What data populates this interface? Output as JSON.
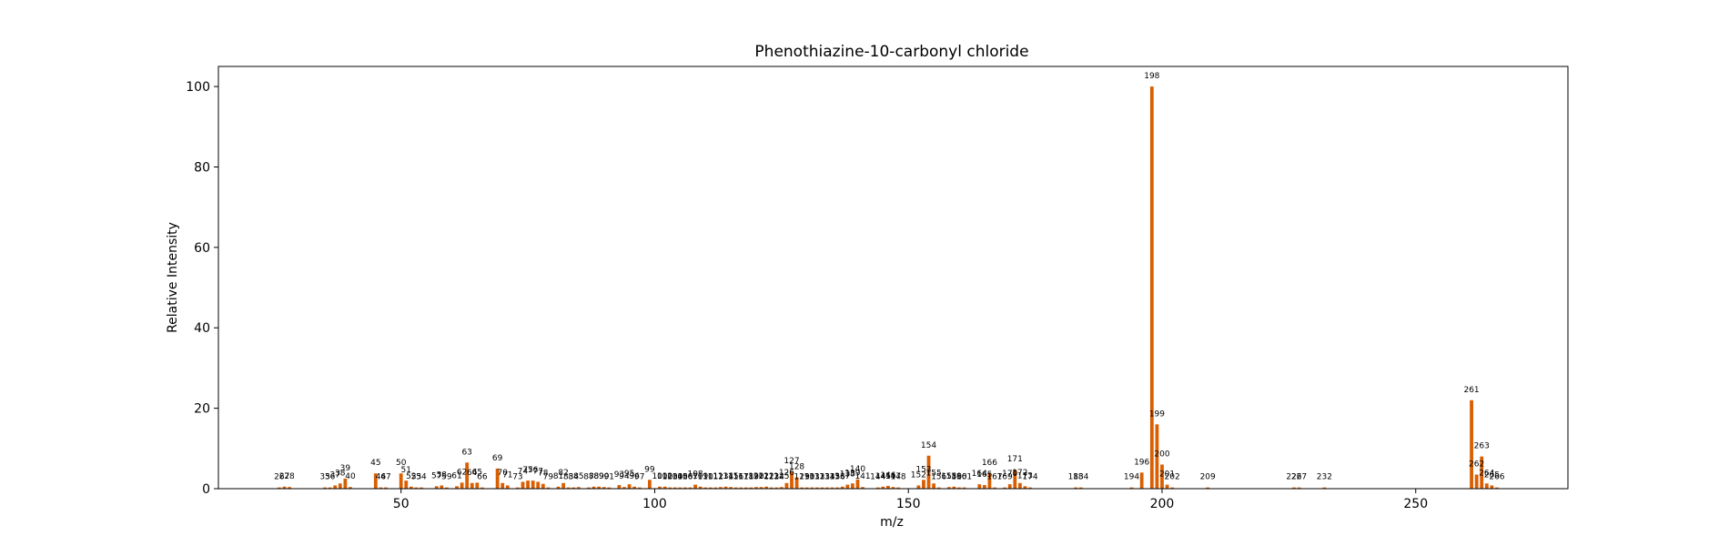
{
  "chart_data": {
    "type": "bar",
    "title": "Phenothiazine-10-carbonyl chloride",
    "xlabel": "m/z",
    "ylabel": "Relative Intensity",
    "xlim": [
      14,
      280
    ],
    "ylim": [
      0,
      105
    ],
    "xticks": [
      50,
      100,
      150,
      200,
      250
    ],
    "yticks": [
      0,
      20,
      40,
      60,
      80,
      100
    ],
    "bar_color": "#d95f02",
    "grid": false,
    "legend": "none",
    "peaks": [
      {
        "mz": 26,
        "intensity": 0.3,
        "label": "26"
      },
      {
        "mz": 27,
        "intensity": 0.5,
        "label": "27"
      },
      {
        "mz": 28,
        "intensity": 0.4,
        "label": "28"
      },
      {
        "mz": 35,
        "intensity": 0.3,
        "label": "35"
      },
      {
        "mz": 36,
        "intensity": 0.3,
        "label": "36"
      },
      {
        "mz": 37,
        "intensity": 0.8,
        "label": "37"
      },
      {
        "mz": 38,
        "intensity": 1.3,
        "label": "38"
      },
      {
        "mz": 39,
        "intensity": 2.5,
        "label": "39"
      },
      {
        "mz": 40,
        "intensity": 0.4,
        "label": "40"
      },
      {
        "mz": 45,
        "intensity": 3.8,
        "label": "45"
      },
      {
        "mz": 46,
        "intensity": 0.3,
        "label": "46"
      },
      {
        "mz": 47,
        "intensity": 0.3,
        "label": "47"
      },
      {
        "mz": 50,
        "intensity": 3.8,
        "label": "50"
      },
      {
        "mz": 51,
        "intensity": 2.0,
        "label": "51"
      },
      {
        "mz": 52,
        "intensity": 0.5,
        "label": "52"
      },
      {
        "mz": 53,
        "intensity": 0.3,
        "label": "53"
      },
      {
        "mz": 54,
        "intensity": 0.3,
        "label": "54"
      },
      {
        "mz": 57,
        "intensity": 0.6,
        "label": "57"
      },
      {
        "mz": 58,
        "intensity": 0.8,
        "label": "58"
      },
      {
        "mz": 59,
        "intensity": 0.3,
        "label": "59"
      },
      {
        "mz": 61,
        "intensity": 0.6,
        "label": "61"
      },
      {
        "mz": 62,
        "intensity": 1.5,
        "label": "62"
      },
      {
        "mz": 63,
        "intensity": 6.5,
        "label": "63"
      },
      {
        "mz": 64,
        "intensity": 1.4,
        "label": "64"
      },
      {
        "mz": 65,
        "intensity": 1.5,
        "label": "65"
      },
      {
        "mz": 66,
        "intensity": 0.3,
        "label": "66"
      },
      {
        "mz": 69,
        "intensity": 5.0,
        "label": "69"
      },
      {
        "mz": 70,
        "intensity": 1.4,
        "label": "70"
      },
      {
        "mz": 71,
        "intensity": 0.8,
        "label": "71"
      },
      {
        "mz": 73,
        "intensity": 0.3,
        "label": "73"
      },
      {
        "mz": 74,
        "intensity": 1.7,
        "label": "74"
      },
      {
        "mz": 75,
        "intensity": 2.0,
        "label": "75"
      },
      {
        "mz": 76,
        "intensity": 2.0,
        "label": "76"
      },
      {
        "mz": 77,
        "intensity": 1.7,
        "label": "77"
      },
      {
        "mz": 78,
        "intensity": 1.2,
        "label": "78"
      },
      {
        "mz": 79,
        "intensity": 0.3,
        "label": "79"
      },
      {
        "mz": 81,
        "intensity": 0.5,
        "label": "81"
      },
      {
        "mz": 82,
        "intensity": 1.4,
        "label": "82"
      },
      {
        "mz": 83,
        "intensity": 0.3,
        "label": "83"
      },
      {
        "mz": 84,
        "intensity": 0.3,
        "label": "84"
      },
      {
        "mz": 85,
        "intensity": 0.4,
        "label": "85"
      },
      {
        "mz": 87,
        "intensity": 0.3,
        "label": "87"
      },
      {
        "mz": 88,
        "intensity": 0.5,
        "label": "88"
      },
      {
        "mz": 89,
        "intensity": 0.5,
        "label": "89"
      },
      {
        "mz": 90,
        "intensity": 0.4,
        "label": "90"
      },
      {
        "mz": 91,
        "intensity": 0.3,
        "label": "91"
      },
      {
        "mz": 93,
        "intensity": 0.9,
        "label": "93"
      },
      {
        "mz": 94,
        "intensity": 0.4,
        "label": "94"
      },
      {
        "mz": 95,
        "intensity": 1.1,
        "label": "95"
      },
      {
        "mz": 96,
        "intensity": 0.5,
        "label": "96"
      },
      {
        "mz": 97,
        "intensity": 0.3,
        "label": "97"
      },
      {
        "mz": 99,
        "intensity": 2.2,
        "label": "99"
      },
      {
        "mz": 101,
        "intensity": 0.5,
        "label": "101"
      },
      {
        "mz": 102,
        "intensity": 0.5,
        "label": "102"
      },
      {
        "mz": 103,
        "intensity": 0.3,
        "label": "103"
      },
      {
        "mz": 104,
        "intensity": 0.3,
        "label": "104"
      },
      {
        "mz": 105,
        "intensity": 0.3,
        "label": "105"
      },
      {
        "mz": 106,
        "intensity": 0.3,
        "label": "106"
      },
      {
        "mz": 107,
        "intensity": 0.3,
        "label": "107"
      },
      {
        "mz": 108,
        "intensity": 1.0,
        "label": "108"
      },
      {
        "mz": 109,
        "intensity": 0.5,
        "label": "109"
      },
      {
        "mz": 110,
        "intensity": 0.3,
        "label": "110"
      },
      {
        "mz": 111,
        "intensity": 0.3,
        "label": "111"
      },
      {
        "mz": 112,
        "intensity": 0.3,
        "label": "112"
      },
      {
        "mz": 113,
        "intensity": 0.4,
        "label": "113"
      },
      {
        "mz": 114,
        "intensity": 0.5,
        "label": "114"
      },
      {
        "mz": 115,
        "intensity": 0.4,
        "label": "115"
      },
      {
        "mz": 116,
        "intensity": 0.3,
        "label": "116"
      },
      {
        "mz": 117,
        "intensity": 0.3,
        "label": "117"
      },
      {
        "mz": 118,
        "intensity": 0.3,
        "label": "118"
      },
      {
        "mz": 119,
        "intensity": 0.3,
        "label": "119"
      },
      {
        "mz": 120,
        "intensity": 0.4,
        "label": "120"
      },
      {
        "mz": 121,
        "intensity": 0.4,
        "label": "121"
      },
      {
        "mz": 122,
        "intensity": 0.5,
        "label": "122"
      },
      {
        "mz": 123,
        "intensity": 0.3,
        "label": "123"
      },
      {
        "mz": 124,
        "intensity": 0.3,
        "label": "124"
      },
      {
        "mz": 125,
        "intensity": 0.4,
        "label": "125"
      },
      {
        "mz": 126,
        "intensity": 1.4,
        "label": "126"
      },
      {
        "mz": 127,
        "intensity": 4.3,
        "label": "127"
      },
      {
        "mz": 128,
        "intensity": 2.8,
        "label": "128"
      },
      {
        "mz": 129,
        "intensity": 0.3,
        "label": "129"
      },
      {
        "mz": 130,
        "intensity": 0.3,
        "label": "130"
      },
      {
        "mz": 131,
        "intensity": 0.3,
        "label": "131"
      },
      {
        "mz": 132,
        "intensity": 0.3,
        "label": "132"
      },
      {
        "mz": 133,
        "intensity": 0.3,
        "label": "133"
      },
      {
        "mz": 134,
        "intensity": 0.3,
        "label": "134"
      },
      {
        "mz": 135,
        "intensity": 0.3,
        "label": "135"
      },
      {
        "mz": 136,
        "intensity": 0.3,
        "label": "136"
      },
      {
        "mz": 137,
        "intensity": 0.5,
        "label": "137"
      },
      {
        "mz": 138,
        "intensity": 1.0,
        "label": "138"
      },
      {
        "mz": 139,
        "intensity": 1.3,
        "label": "139"
      },
      {
        "mz": 140,
        "intensity": 2.3,
        "label": "140"
      },
      {
        "mz": 141,
        "intensity": 0.4,
        "label": "141"
      },
      {
        "mz": 144,
        "intensity": 0.3,
        "label": "144"
      },
      {
        "mz": 145,
        "intensity": 0.5,
        "label": "145"
      },
      {
        "mz": 146,
        "intensity": 0.7,
        "label": "146"
      },
      {
        "mz": 147,
        "intensity": 0.4,
        "label": "147"
      },
      {
        "mz": 148,
        "intensity": 0.3,
        "label": "148"
      },
      {
        "mz": 152,
        "intensity": 0.8,
        "label": "152"
      },
      {
        "mz": 153,
        "intensity": 2.2,
        "label": "153"
      },
      {
        "mz": 154,
        "intensity": 8.2,
        "label": "154"
      },
      {
        "mz": 155,
        "intensity": 1.3,
        "label": "155"
      },
      {
        "mz": 156,
        "intensity": 0.3,
        "label": "156"
      },
      {
        "mz": 158,
        "intensity": 0.4,
        "label": "158"
      },
      {
        "mz": 159,
        "intensity": 0.5,
        "label": "159"
      },
      {
        "mz": 160,
        "intensity": 0.3,
        "label": "160"
      },
      {
        "mz": 161,
        "intensity": 0.3,
        "label": "161"
      },
      {
        "mz": 164,
        "intensity": 1.1,
        "label": "164"
      },
      {
        "mz": 165,
        "intensity": 0.9,
        "label": "165"
      },
      {
        "mz": 166,
        "intensity": 3.9,
        "label": "166"
      },
      {
        "mz": 167,
        "intensity": 0.3,
        "label": "167"
      },
      {
        "mz": 169,
        "intensity": 0.3,
        "label": "169"
      },
      {
        "mz": 170,
        "intensity": 1.1,
        "label": "170"
      },
      {
        "mz": 171,
        "intensity": 4.7,
        "label": "171"
      },
      {
        "mz": 172,
        "intensity": 1.4,
        "label": "172"
      },
      {
        "mz": 173,
        "intensity": 0.6,
        "label": "173"
      },
      {
        "mz": 174,
        "intensity": 0.3,
        "label": "174"
      },
      {
        "mz": 183,
        "intensity": 0.3,
        "label": "183"
      },
      {
        "mz": 184,
        "intensity": 0.3,
        "label": "184"
      },
      {
        "mz": 194,
        "intensity": 0.3,
        "label": "194"
      },
      {
        "mz": 196,
        "intensity": 4.0,
        "label": "196"
      },
      {
        "mz": 198,
        "intensity": 100,
        "label": "198"
      },
      {
        "mz": 199,
        "intensity": 16.0,
        "label": "199"
      },
      {
        "mz": 200,
        "intensity": 6.0,
        "label": "200"
      },
      {
        "mz": 201,
        "intensity": 1.0,
        "label": "201"
      },
      {
        "mz": 202,
        "intensity": 0.3,
        "label": "202"
      },
      {
        "mz": 209,
        "intensity": 0.3,
        "label": "209"
      },
      {
        "mz": 226,
        "intensity": 0.3,
        "label": "226"
      },
      {
        "mz": 227,
        "intensity": 0.3,
        "label": "227"
      },
      {
        "mz": 232,
        "intensity": 0.3,
        "label": "232"
      },
      {
        "mz": 261,
        "intensity": 22.0,
        "label": "261"
      },
      {
        "mz": 262,
        "intensity": 3.5,
        "label": "262"
      },
      {
        "mz": 263,
        "intensity": 8.0,
        "label": "263"
      },
      {
        "mz": 264,
        "intensity": 1.3,
        "label": "264"
      },
      {
        "mz": 265,
        "intensity": 0.8,
        "label": "265"
      },
      {
        "mz": 266,
        "intensity": 0.3,
        "label": "266"
      }
    ]
  }
}
